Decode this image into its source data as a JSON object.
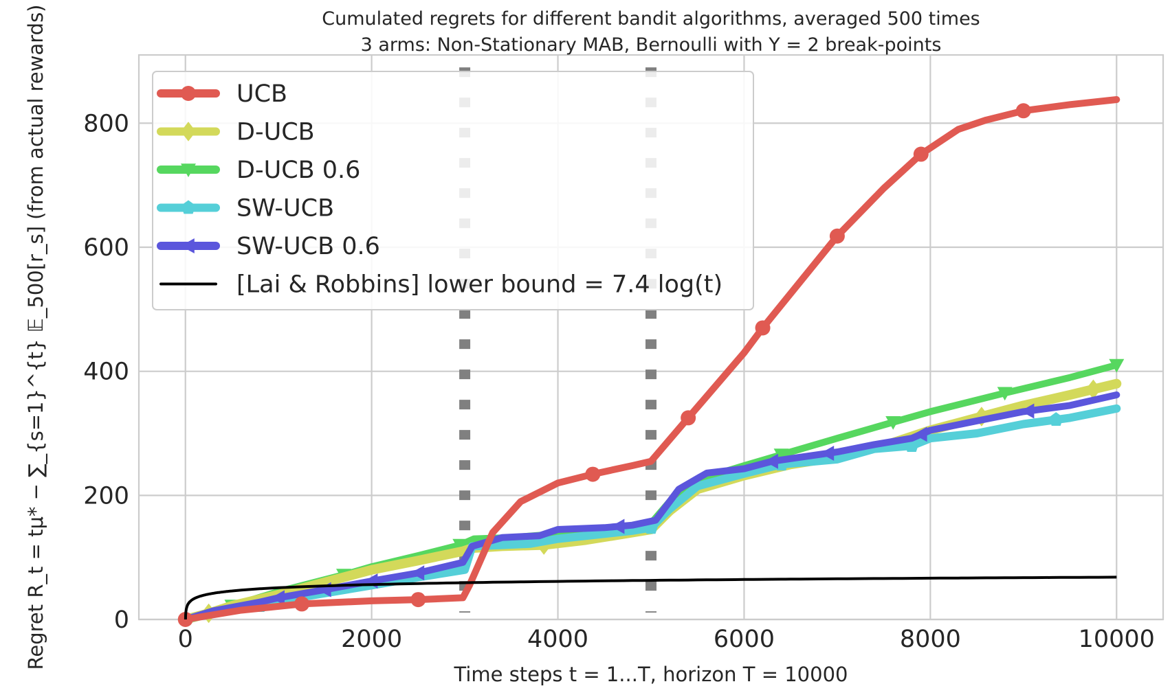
{
  "chart_data": {
    "type": "line",
    "title": "Cumulated regrets for different bandit algorithms, averaged 500 times",
    "subtitle": "3 arms: Non-Stationary MAB, Bernoulli with Υ = 2 break-points",
    "xlabel": "Time steps t = 1...T, horizon T = 10000",
    "ylabel": "Regret R_t = tμ* − ∑_{s=1}^{t} 𝔼_500[r_s] (from actual rewards)",
    "xlim": [
      -500,
      10500
    ],
    "ylim": [
      0,
      910
    ],
    "x_ticks": [
      0,
      2000,
      4000,
      6000,
      8000,
      10000
    ],
    "y_ticks": [
      0,
      200,
      400,
      600,
      800
    ],
    "grid": true,
    "legend_position": "top-left",
    "break_points": [
      3000,
      5000
    ],
    "series": [
      {
        "name": "UCB",
        "color": "#e05a52",
        "marker": "circle",
        "x": [
          0,
          600,
          1250,
          2000,
          2500,
          2980,
          3050,
          3300,
          3600,
          4000,
          4400,
          4800,
          5000,
          5400,
          6000,
          6200,
          7000,
          7500,
          7900,
          8300,
          8600,
          9000,
          9500,
          10000
        ],
        "y": [
          0,
          15,
          25,
          30,
          32,
          35,
          55,
          140,
          190,
          220,
          235,
          248,
          255,
          325,
          430,
          470,
          618,
          695,
          750,
          790,
          805,
          820,
          830,
          838
        ],
        "marker_x": [
          0,
          1250,
          2500,
          4375,
          5400,
          6200,
          7000,
          7900,
          9000
        ]
      },
      {
        "name": "D-UCB",
        "color": "#d3d95a",
        "marker": "diamond",
        "x": [
          0,
          250,
          500,
          1000,
          1500,
          2000,
          2500,
          2980,
          3080,
          3400,
          3850,
          4300,
          4800,
          5000,
          5200,
          5500,
          6000,
          6500,
          7000,
          7500,
          8000,
          8500,
          9000,
          9500,
          10000
        ],
        "y": [
          0,
          10,
          22,
          40,
          60,
          80,
          95,
          110,
          115,
          118,
          120,
          128,
          140,
          145,
          175,
          210,
          232,
          250,
          262,
          280,
          305,
          325,
          345,
          362,
          380
        ],
        "marker_x": [
          250,
          3850,
          8550,
          9750
        ]
      },
      {
        "name": "D-UCB 0.6",
        "color": "#56d75f",
        "marker": "triangle-down",
        "x": [
          0,
          500,
          1000,
          1700,
          2000,
          2500,
          2950,
          3100,
          3500,
          4000,
          4500,
          5000,
          5200,
          5500,
          6000,
          6500,
          7000,
          7600,
          8000,
          8800,
          9500,
          10000
        ],
        "y": [
          0,
          22,
          45,
          72,
          85,
          103,
          120,
          130,
          132,
          138,
          145,
          155,
          190,
          225,
          248,
          270,
          292,
          318,
          335,
          365,
          390,
          410
        ],
        "marker_x": [
          500,
          1700,
          2950,
          6400,
          7600,
          8800,
          10000
        ]
      },
      {
        "name": "SW-UCB",
        "color": "#55cfd8",
        "marker": "pentagon",
        "x": [
          0,
          400,
          800,
          1200,
          1600,
          2000,
          2500,
          3000,
          3080,
          3400,
          3700,
          4000,
          4500,
          4800,
          5000,
          5200,
          5500,
          6000,
          6400,
          7000,
          7400,
          7800,
          8000,
          8500,
          9000,
          9500,
          10000
        ],
        "y": [
          0,
          14,
          22,
          35,
          45,
          55,
          68,
          80,
          118,
          120,
          122,
          130,
          138,
          143,
          148,
          178,
          215,
          235,
          250,
          258,
          275,
          280,
          292,
          300,
          315,
          325,
          340
        ],
        "marker_x": [
          800,
          5000,
          6400,
          7800,
          9350
        ]
      },
      {
        "name": "SW-UCB 0.6",
        "color": "#5b56dc",
        "marker": "triangle-left",
        "x": [
          0,
          300,
          800,
          1000,
          1500,
          2000,
          2500,
          2980,
          3080,
          3400,
          3800,
          4000,
          4500,
          4800,
          5050,
          5300,
          5600,
          6000,
          6300,
          7000,
          7400,
          7800,
          8000,
          8500,
          9000,
          9500,
          10000
        ],
        "y": [
          0,
          14,
          28,
          35,
          48,
          62,
          75,
          92,
          118,
          132,
          135,
          145,
          148,
          152,
          160,
          210,
          236,
          243,
          255,
          270,
          282,
          292,
          305,
          320,
          335,
          345,
          362
        ],
        "marker_x": [
          1000,
          1500,
          2000,
          2500,
          4650,
          6300,
          6900,
          7900,
          9050
        ]
      },
      {
        "name": "[Lai & Robbins] lower bound = 7.4 log(t)",
        "color": "#000000",
        "marker": "none",
        "formula_coefficient": 7.4
      }
    ]
  }
}
